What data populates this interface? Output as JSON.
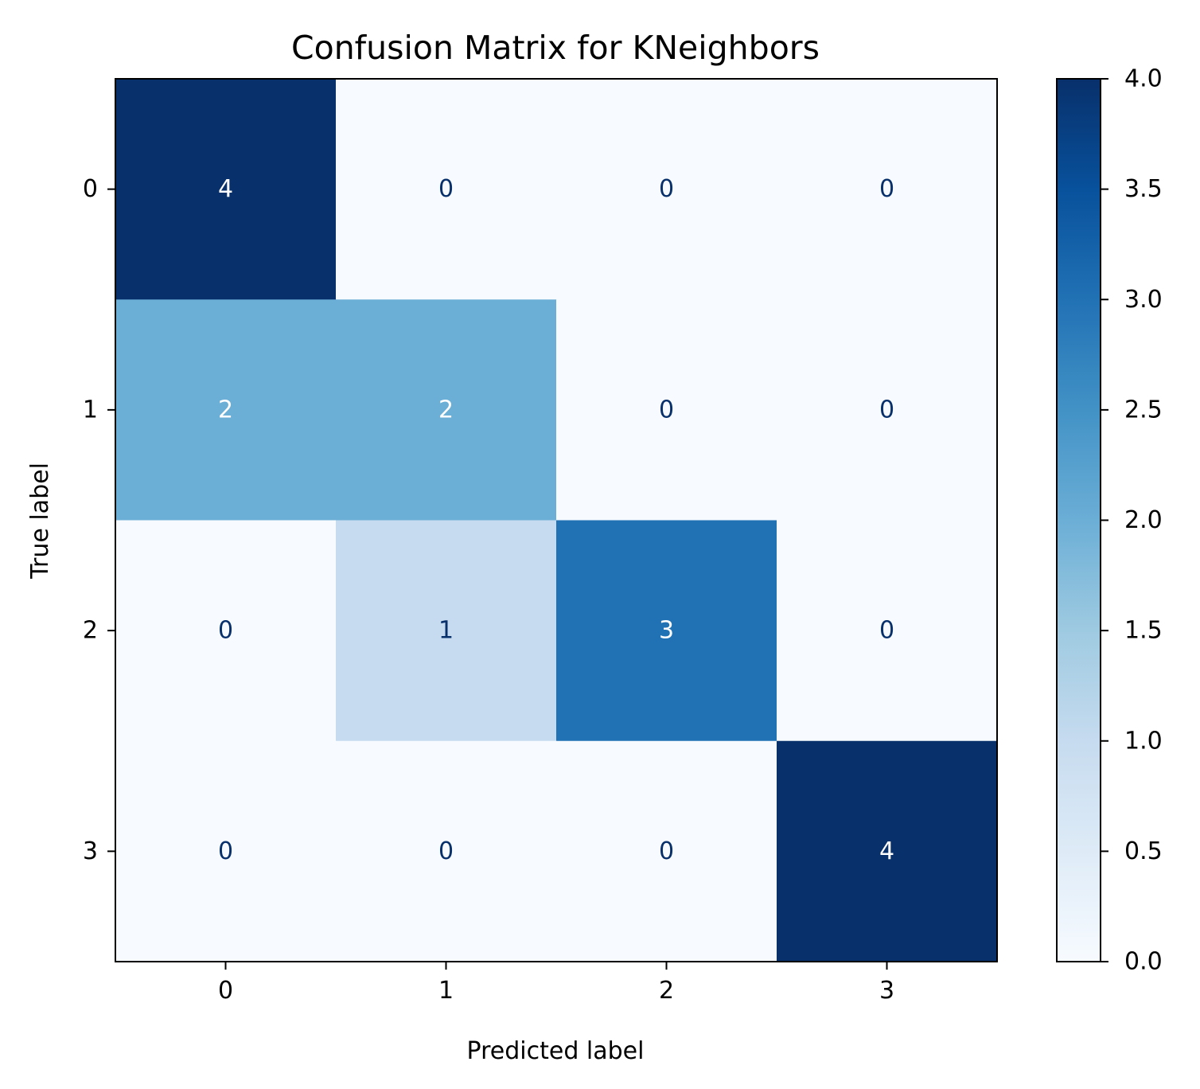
{
  "chart_data": {
    "type": "heatmap",
    "title": "Confusion Matrix for KNeighbors",
    "xlabel": "Predicted label",
    "ylabel": "True label",
    "x_categories": [
      "0",
      "1",
      "2",
      "3"
    ],
    "y_categories": [
      "0",
      "1",
      "2",
      "3"
    ],
    "values": [
      [
        4,
        0,
        0,
        0
      ],
      [
        2,
        2,
        0,
        0
      ],
      [
        0,
        1,
        3,
        0
      ],
      [
        0,
        0,
        0,
        4
      ]
    ],
    "colormap": "Blues",
    "colorbar": {
      "range": [
        0.0,
        4.0
      ],
      "ticks": [
        "0.0",
        "0.5",
        "1.0",
        "1.5",
        "2.0",
        "2.5",
        "3.0",
        "3.5",
        "4.0"
      ]
    },
    "colors": {
      "text_dark": "#08306b",
      "text_light": "#ffffff",
      "low": "#f7fbff",
      "high": "#08306b"
    }
  }
}
